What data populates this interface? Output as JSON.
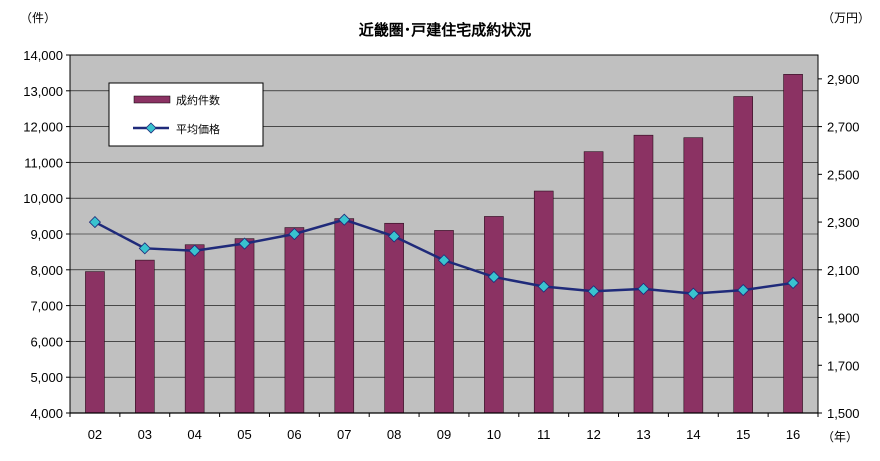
{
  "chart_data": {
    "type": "bar",
    "title": "近畿圏･戸建住宅成約状況",
    "left_unit": "（件）",
    "right_unit": "（万円）",
    "x_unit": "（年）",
    "categories": [
      "02",
      "03",
      "04",
      "05",
      "06",
      "07",
      "08",
      "09",
      "10",
      "11",
      "12",
      "13",
      "14",
      "15",
      "16"
    ],
    "series": [
      {
        "name": "成約件数",
        "type": "bar",
        "axis": "left",
        "color": "#8B3263",
        "values": [
          7950,
          8270,
          8700,
          8870,
          9180,
          9430,
          9300,
          9100,
          9490,
          10200,
          11300,
          11760,
          11690,
          12840,
          13460
        ]
      },
      {
        "name": "平均価格",
        "type": "line",
        "axis": "right",
        "color": "#1F2A7A",
        "marker_color": "#39C3CF",
        "values": [
          2300,
          2190,
          2180,
          2210,
          2250,
          2310,
          2240,
          2140,
          2070,
          2030,
          2010,
          2020,
          2000,
          2015,
          2045
        ]
      }
    ],
    "ylim_left": [
      4000,
      14000
    ],
    "ylim_right": [
      1500,
      3000
    ],
    "yticks_left": [
      "4,000",
      "5,000",
      "6,000",
      "7,000",
      "8,000",
      "9,000",
      "10,000",
      "11,000",
      "12,000",
      "13,000",
      "14,000"
    ],
    "yticks_right": [
      "1,500",
      "1,700",
      "1,900",
      "2,100",
      "2,300",
      "2,500",
      "2,700",
      "2,900"
    ],
    "yticks_right_values": [
      1500,
      1700,
      1900,
      2100,
      2300,
      2500,
      2700,
      2900
    ],
    "grid": true,
    "plot_background": "#C0C0C0",
    "legend_position": "top-left"
  }
}
